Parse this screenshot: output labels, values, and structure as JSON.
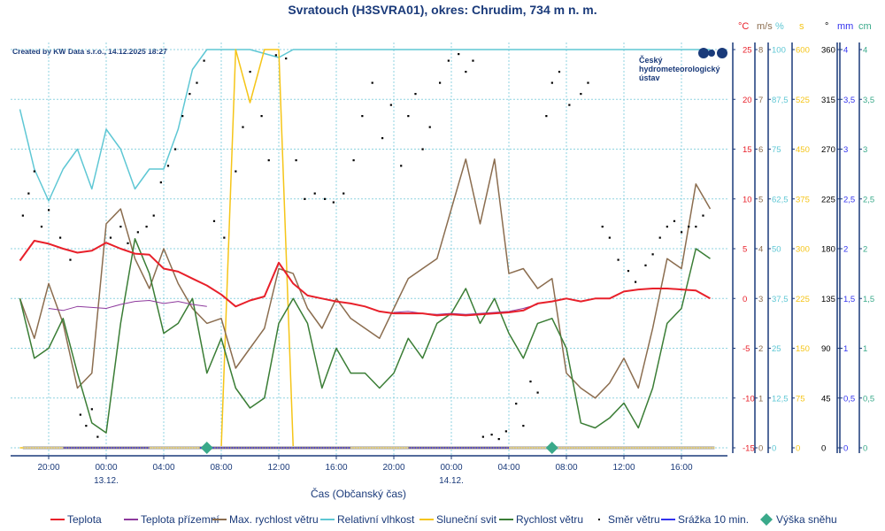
{
  "chart_data": {
    "type": "line",
    "title": "Svratouch (H3SVRA01), okres: Chrudim, 734 m n. m.",
    "credit": "Created by KW Data s.r.o., 14.12.2025 18:27",
    "logo_text": [
      "Český",
      "hydrometeorologický",
      "ústav"
    ],
    "xlabel": "Čas (Občanský čas)",
    "x_ticks": [
      "20:00",
      "00:00",
      "04:00",
      "08:00",
      "12:00",
      "16:00",
      "20:00",
      "00:00",
      "04:00",
      "08:00",
      "12:00",
      "16:00"
    ],
    "x_tick_hours": [
      20,
      24,
      28,
      32,
      36,
      40,
      44,
      48,
      52,
      56,
      60,
      64
    ],
    "date_labels": [
      {
        "hour": 24,
        "text": "13.12."
      },
      {
        "hour": 48,
        "text": "14.12."
      }
    ],
    "axes": [
      {
        "unit": "°C",
        "color": "#e8202a",
        "ticks": [
          "25",
          "20",
          "15",
          "10",
          "5",
          "0",
          "-5",
          "-10",
          "-15"
        ],
        "range": [
          -15,
          25
        ]
      },
      {
        "unit": "m/s",
        "color": "#8b6d4f",
        "ticks": [
          "8",
          "7",
          "6",
          "5",
          "4",
          "3",
          "2",
          "1",
          "0"
        ],
        "range": [
          0,
          8
        ]
      },
      {
        "unit": "%",
        "color": "#5ec7d4",
        "ticks": [
          "100",
          "87,5",
          "75",
          "62,5",
          "50",
          "37,5",
          "25",
          "12,5",
          "0"
        ],
        "range": [
          0,
          100
        ]
      },
      {
        "unit": "s",
        "color": "#f5c518",
        "ticks": [
          "600",
          "525",
          "450",
          "375",
          "300",
          "225",
          "150",
          "75",
          "0"
        ],
        "range": [
          0,
          600
        ]
      },
      {
        "unit": "°",
        "color": "#000000",
        "ticks": [
          "360",
          "315",
          "270",
          "225",
          "180",
          "135",
          "90",
          "45",
          "0"
        ],
        "range": [
          0,
          360
        ]
      },
      {
        "unit": "mm",
        "color": "#3333ee",
        "ticks": [
          "4",
          "3,5",
          "3",
          "2,5",
          "2",
          "1,5",
          "1",
          "0,5",
          "0"
        ],
        "range": [
          0,
          4
        ]
      },
      {
        "unit": "cm",
        "color": "#3aa98a",
        "ticks": [
          "4",
          "3,5",
          "3",
          "2,5",
          "2",
          "1,5",
          "1",
          "0,5",
          "0"
        ],
        "range": [
          0,
          4
        ]
      }
    ],
    "hours": [
      18,
      19,
      20,
      21,
      22,
      23,
      24,
      25,
      26,
      27,
      28,
      29,
      30,
      31,
      32,
      33,
      34,
      35,
      36,
      37,
      38,
      39,
      40,
      41,
      42,
      43,
      44,
      45,
      46,
      47,
      48,
      49,
      50,
      51,
      52,
      53,
      54,
      55,
      56,
      57,
      58,
      59,
      60,
      61,
      62,
      63,
      64,
      65,
      66
    ],
    "series": [
      {
        "name": "Teplota",
        "color": "#e8202a",
        "axis": 0,
        "values": [
          3.8,
          5.8,
          5.5,
          5,
          4.6,
          4.8,
          5.6,
          5,
          4.5,
          4.4,
          3,
          2.7,
          2,
          1.3,
          0.4,
          -0.8,
          -0.2,
          0.2,
          3.6,
          1.5,
          0.3,
          0,
          -0.3,
          -0.5,
          -0.8,
          -1.3,
          -1.5,
          -1.5,
          -1.5,
          -1.7,
          -1.6,
          -1.7,
          -1.6,
          -1.5,
          -1.4,
          -1.2,
          -0.5,
          -0.3,
          0,
          -0.3,
          0,
          0,
          0.7,
          0.9,
          1.0,
          1.0,
          0.9,
          0.8,
          0
        ]
      },
      {
        "name": "Teplota přízemní",
        "color": "#8e3a9d",
        "axis": 0,
        "values": [
          null,
          null,
          -1.0,
          -1.2,
          -0.8,
          -0.9,
          -1.0,
          -0.6,
          -0.3,
          -0.2,
          -0.5,
          -0.3,
          -0.6,
          -0.8,
          null,
          null,
          null,
          null,
          null,
          null,
          null,
          null,
          null,
          null,
          null,
          null,
          -1.4,
          -1.3,
          -1.5,
          -1.6,
          -1.5,
          -1.6,
          -1.5,
          -1.4,
          -1.3,
          -1.0,
          -0.6,
          null,
          null,
          null,
          null,
          null,
          null,
          null,
          null,
          null,
          null,
          null,
          null
        ]
      },
      {
        "name": "Max. rychlost větru",
        "color": "#8b6d4f",
        "axis": 1,
        "values": [
          3,
          2.2,
          3.3,
          2.5,
          1.2,
          1.5,
          4.5,
          4.8,
          3.8,
          3.2,
          4.0,
          3.3,
          2.8,
          2.5,
          2.6,
          1.6,
          2,
          2.4,
          3.6,
          3.5,
          2.8,
          2.4,
          3,
          2.6,
          2.4,
          2.2,
          2.8,
          3.4,
          3.6,
          3.8,
          4.8,
          5.8,
          4.5,
          5.8,
          3.5,
          3.6,
          3.2,
          3.4,
          1.5,
          1.2,
          1.0,
          1.3,
          1.8,
          1.2,
          2.4,
          3.8,
          3.6,
          5.3,
          4.8
        ]
      },
      {
        "name": "Relativní vlhkost",
        "color": "#5ec7d4",
        "axis": 2,
        "values": [
          85,
          70,
          62,
          70,
          75,
          65,
          80,
          75,
          65,
          70,
          70,
          80,
          95,
          100,
          100,
          100,
          100,
          99,
          98,
          100,
          100,
          100,
          100,
          100,
          100,
          100,
          100,
          100,
          100,
          100,
          100,
          100,
          100,
          100,
          100,
          100,
          100,
          100,
          100,
          100,
          100,
          100,
          100,
          100,
          100,
          100,
          100,
          100,
          100
        ]
      },
      {
        "name": "Sluneční svit",
        "color": "#f5c518",
        "axis": 3,
        "values": [
          0,
          0,
          0,
          0,
          0,
          0,
          0,
          0,
          0,
          0,
          0,
          0,
          0,
          0,
          0,
          600,
          520,
          600,
          600,
          0,
          0,
          0,
          0,
          0,
          0,
          0,
          0,
          0,
          0,
          0,
          0,
          0,
          0,
          0,
          0,
          0,
          0,
          0,
          0,
          0,
          0,
          0,
          0,
          0,
          0,
          0,
          0,
          0,
          0
        ]
      },
      {
        "name": "Rychlost větru",
        "color": "#3a7d35",
        "axis": 1,
        "values": [
          3,
          1.8,
          2,
          2.6,
          1.5,
          0.5,
          0.3,
          2.5,
          4.2,
          3.5,
          2.3,
          2.5,
          3,
          1.5,
          2.2,
          1.2,
          0.8,
          1,
          2.5,
          3,
          2.5,
          1.2,
          2,
          1.5,
          1.5,
          1.2,
          1.5,
          2.2,
          1.8,
          2.5,
          2.7,
          3.2,
          2.5,
          3,
          2.3,
          1.8,
          2.5,
          2.6,
          2,
          0.5,
          0.4,
          0.6,
          0.9,
          0.4,
          1.2,
          2.5,
          2.8,
          4,
          3.8
        ]
      }
    ],
    "wind_direction": {
      "name": "Směr větru",
      "color": "#000000",
      "points": [
        [
          18.2,
          210
        ],
        [
          18.6,
          230
        ],
        [
          19,
          250
        ],
        [
          19.5,
          200
        ],
        [
          20,
          215
        ],
        [
          20.8,
          190
        ],
        [
          21.5,
          170
        ],
        [
          22.2,
          30
        ],
        [
          22.6,
          20
        ],
        [
          23,
          35
        ],
        [
          23.4,
          10
        ],
        [
          24.3,
          190
        ],
        [
          25,
          200
        ],
        [
          25.5,
          185
        ],
        [
          26.2,
          195
        ],
        [
          26.8,
          200
        ],
        [
          27.3,
          210
        ],
        [
          27.8,
          240
        ],
        [
          28.3,
          255
        ],
        [
          28.8,
          270
        ],
        [
          29.3,
          300
        ],
        [
          29.8,
          320
        ],
        [
          30.3,
          330
        ],
        [
          30.8,
          350
        ],
        [
          31.5,
          205
        ],
        [
          32.2,
          190
        ],
        [
          33,
          250
        ],
        [
          33.5,
          290
        ],
        [
          34,
          340
        ],
        [
          34.8,
          300
        ],
        [
          35.3,
          260
        ],
        [
          35.8,
          355
        ],
        [
          36.5,
          352
        ],
        [
          37.2,
          260
        ],
        [
          37.8,
          225
        ],
        [
          38.5,
          230
        ],
        [
          39.2,
          225
        ],
        [
          39.8,
          222
        ],
        [
          40.5,
          230
        ],
        [
          41.2,
          260
        ],
        [
          41.8,
          300
        ],
        [
          42.5,
          330
        ],
        [
          43.2,
          280
        ],
        [
          43.8,
          310
        ],
        [
          44.5,
          255
        ],
        [
          45,
          300
        ],
        [
          45.5,
          320
        ],
        [
          46,
          270
        ],
        [
          46.5,
          290
        ],
        [
          47.2,
          330
        ],
        [
          47.8,
          350
        ],
        [
          48.5,
          356
        ],
        [
          49,
          340
        ],
        [
          49.5,
          350
        ],
        [
          50.2,
          10
        ],
        [
          50.8,
          12
        ],
        [
          51.3,
          8
        ],
        [
          51.8,
          15
        ],
        [
          52.5,
          40
        ],
        [
          53,
          20
        ],
        [
          53.5,
          60
        ],
        [
          54,
          50
        ],
        [
          54.6,
          300
        ],
        [
          55,
          330
        ],
        [
          55.5,
          340
        ],
        [
          56.2,
          310
        ],
        [
          57,
          320
        ],
        [
          57.5,
          330
        ],
        [
          58.5,
          200
        ],
        [
          59,
          190
        ],
        [
          59.6,
          170
        ],
        [
          60.3,
          160
        ],
        [
          60.8,
          150
        ],
        [
          61.5,
          165
        ],
        [
          62,
          175
        ],
        [
          62.5,
          190
        ],
        [
          63,
          200
        ],
        [
          63.5,
          205
        ],
        [
          64,
          195
        ],
        [
          64.5,
          200
        ],
        [
          65,
          200
        ],
        [
          65.5,
          210
        ]
      ]
    },
    "precipitation": {
      "name": "Srážka 10 min.",
      "color": "#3333ee",
      "value": 0
    },
    "snow_depth": {
      "name": "Výška sněhu",
      "color": "#3aa98a",
      "points": [
        [
          31,
          0
        ],
        [
          55,
          0
        ]
      ]
    },
    "legend": [
      "Teplota",
      "Teplota přízemní",
      "Max. rychlost větru",
      "Relativní vlhkost",
      "Sluneční svit",
      "Rychlost větru",
      "Směr větru",
      "Srážka 10 min.",
      "Výška sněhu"
    ],
    "legend_placement": "bottom"
  }
}
